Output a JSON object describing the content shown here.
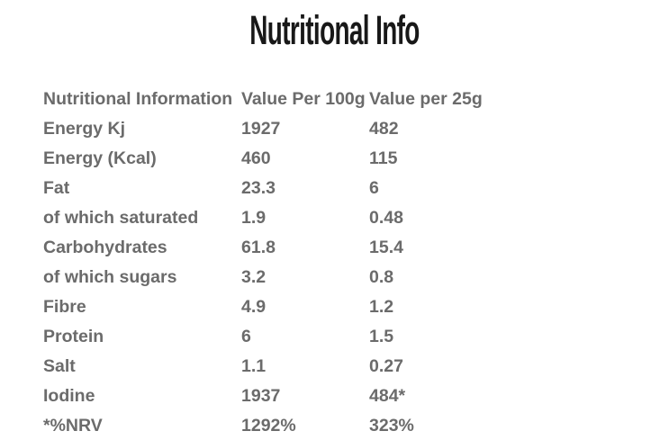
{
  "title": "Nutritional Info",
  "colors": {
    "background": "#ffffff",
    "title_text": "#181818",
    "table_text": "#6b6b6b"
  },
  "table": {
    "headers": [
      "Nutritional Information",
      "Value Per 100g",
      "Value per 25g"
    ],
    "rows": [
      {
        "label": "Energy Kj",
        "per_100g": "1927",
        "per_25g": "482"
      },
      {
        "label": "Energy (Kcal)",
        "per_100g": "460",
        "per_25g": "115"
      },
      {
        "label": "Fat",
        "per_100g": "23.3",
        "per_25g": "6"
      },
      {
        "label": "of which saturated",
        "per_100g": "1.9",
        "per_25g": "0.48"
      },
      {
        "label": "Carbohydrates",
        "per_100g": "61.8",
        "per_25g": "15.4"
      },
      {
        "label": "of which sugars",
        "per_100g": "3.2",
        "per_25g": "0.8"
      },
      {
        "label": "Fibre",
        "per_100g": "4.9",
        "per_25g": "1.2"
      },
      {
        "label": "Protein",
        "per_100g": "6",
        "per_25g": "1.5"
      },
      {
        "label": "Salt",
        "per_100g": "1.1",
        "per_25g": "0.27"
      },
      {
        "label": "Iodine",
        "per_100g": "1937",
        "per_25g": "484*"
      },
      {
        "label": "*%NRV",
        "per_100g": "1292%",
        "per_25g": "323%"
      }
    ]
  }
}
